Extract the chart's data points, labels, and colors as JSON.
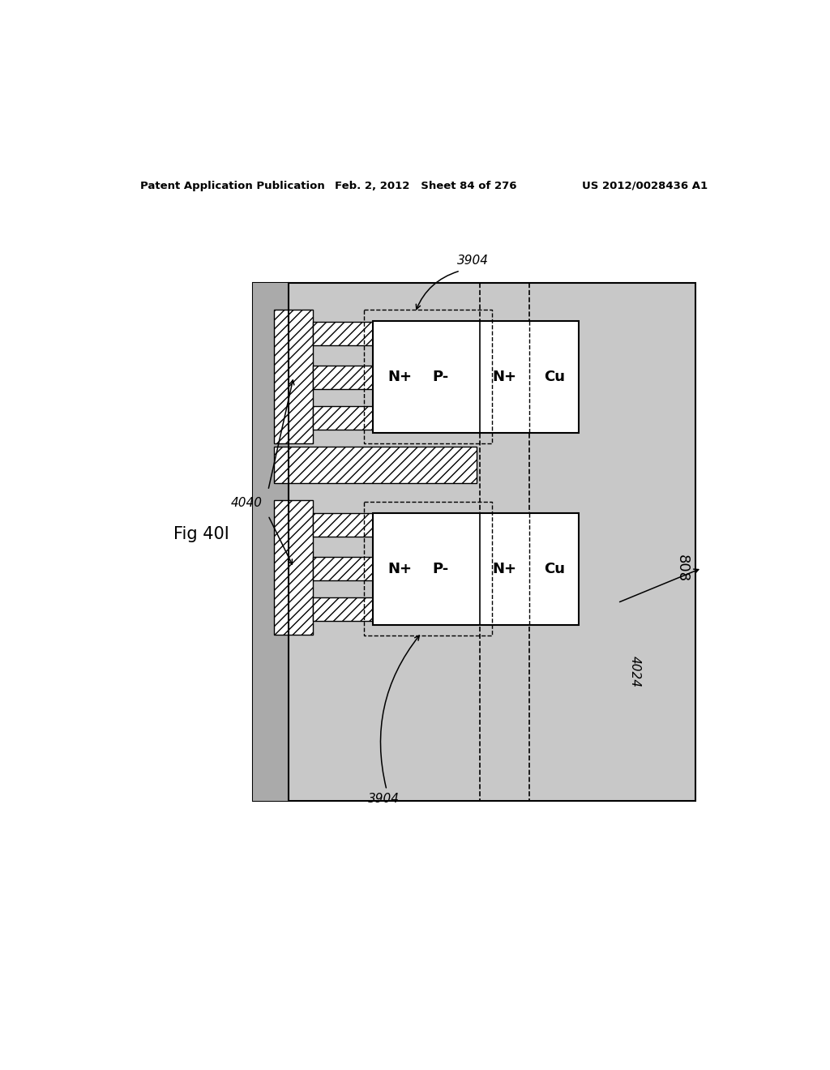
{
  "header_left": "Patent Application Publication",
  "header_center": "Feb. 2, 2012   Sheet 84 of 276",
  "header_right": "US 2012/0028436 A1",
  "fig_label": "Fig 40I",
  "label_3904": "3904",
  "label_4040": "4040",
  "label_4024": "4024",
  "label_808": "808",
  "bg_color": "#ffffff",
  "stipple_color": "#c8c8c8",
  "stipple_dark_color": "#b8b8b8"
}
